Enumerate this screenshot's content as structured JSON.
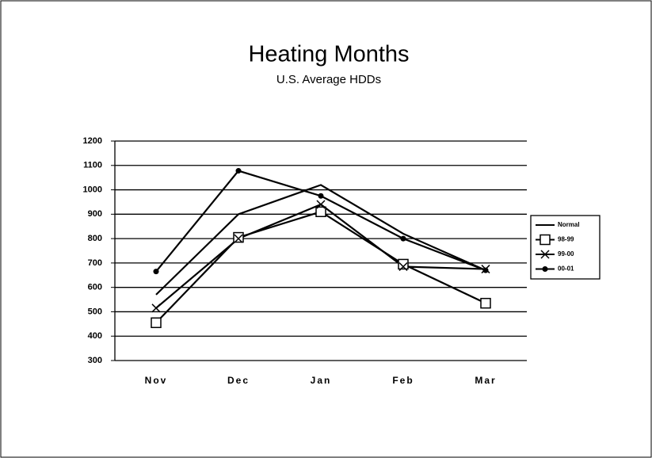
{
  "chart_data": {
    "type": "line",
    "title": "Heating Months",
    "subtitle": "U.S. Average HDDs",
    "categories": [
      "Nov",
      "Dec",
      "Jan",
      "Feb",
      "Mar"
    ],
    "series": [
      {
        "name": "Normal",
        "color": "#000000",
        "marker": "none",
        "values": [
          570,
          900,
          1020,
          820,
          670
        ]
      },
      {
        "name": "98-99",
        "color": "#000000",
        "marker": "square",
        "values": [
          455,
          805,
          910,
          695,
          535
        ]
      },
      {
        "name": "99-00",
        "color": "#000000",
        "marker": "x",
        "values": [
          515,
          800,
          940,
          685,
          675
        ]
      },
      {
        "name": "00-01",
        "color": "#000000",
        "marker": "circle",
        "values": [
          665,
          1078,
          975,
          800,
          670
        ]
      }
    ],
    "ylim": [
      300,
      1200
    ],
    "yticks": [
      300,
      400,
      500,
      600,
      700,
      800,
      900,
      1000,
      1100,
      1200
    ],
    "grid": true,
    "legend": "right"
  }
}
